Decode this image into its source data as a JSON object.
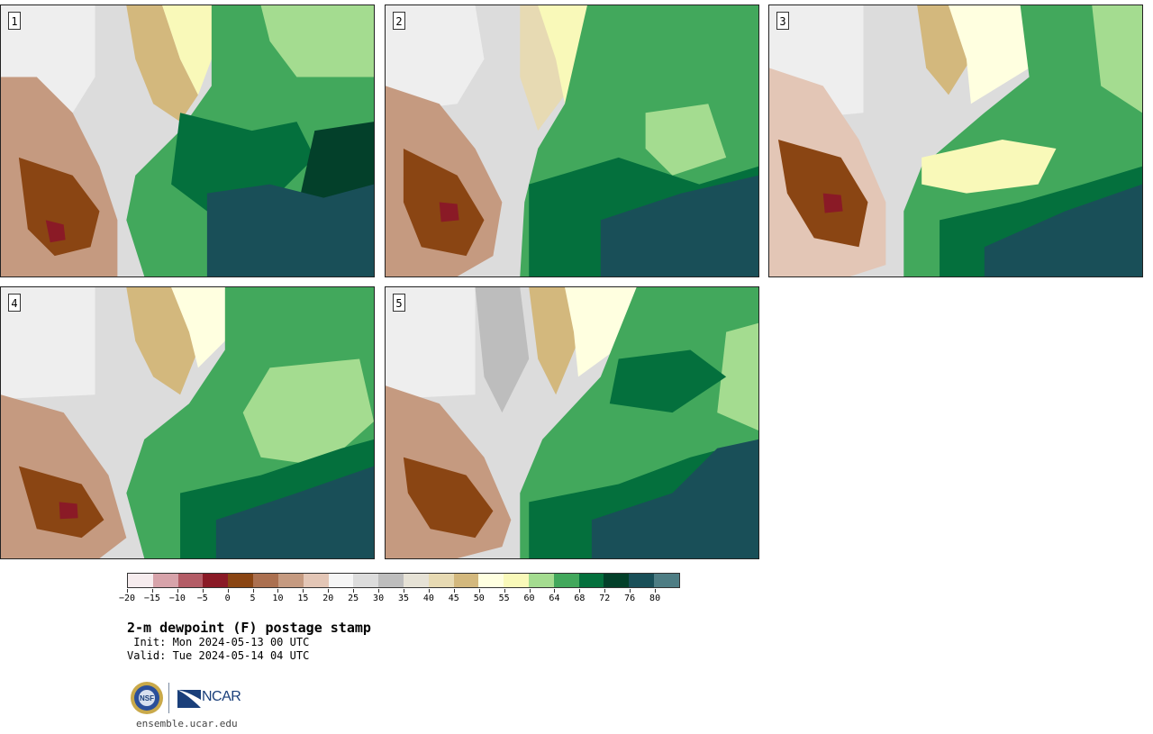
{
  "panels": [
    {
      "label": "1"
    },
    {
      "label": "2"
    },
    {
      "label": "3"
    },
    {
      "label": "4"
    },
    {
      "label": "5"
    }
  ],
  "colorbar": {
    "colors": [
      "#f6ecee",
      "#d7a3aa",
      "#b35c66",
      "#8a1a26",
      "#8a4513",
      "#ab7050",
      "#c59a80",
      "#e3c6b6",
      "#f5f5f5",
      "#dcdcdc",
      "#bdbdbd",
      "#e6e2d6",
      "#e7dab3",
      "#d3b87d",
      "#ffffe0",
      "#f9f9b9",
      "#a4dc90",
      "#42a85c",
      "#04703d",
      "#03402a",
      "#194f58",
      "#4e7d84"
    ],
    "tick_labels": [
      "−20",
      "−15",
      "−10",
      "−5",
      "0",
      "5",
      "10",
      "15",
      "20",
      "25",
      "30",
      "35",
      "40",
      "45",
      "50",
      "55",
      "60",
      "64",
      "68",
      "72",
      "76",
      "80"
    ]
  },
  "title": "2-m dewpoint (F) postage stamp",
  "init_text": " Init: Mon 2024-05-13 00 UTC",
  "valid_text": "Valid: Tue 2024-05-14 04 UTC",
  "logos": {
    "nsf": "NSF",
    "ncar": "NCAR"
  },
  "site": "ensemble.ucar.edu"
}
